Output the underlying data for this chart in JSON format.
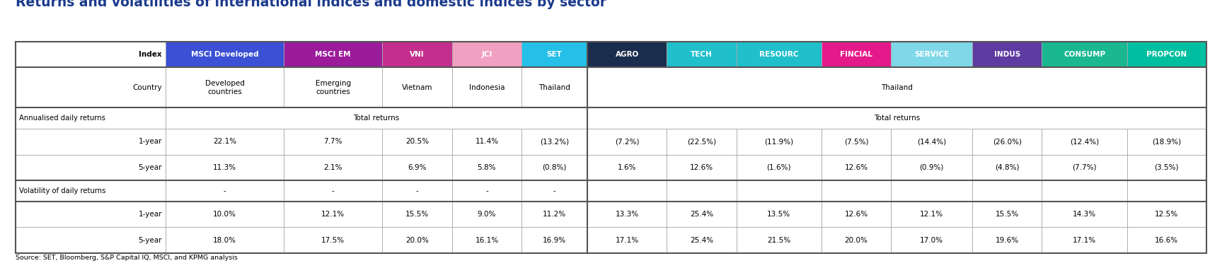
{
  "title": "Returns and volatilities of international indices and domestic indices by sector",
  "title_color": "#1B3A8C",
  "header_labels": [
    "Index",
    "MSCI Developed",
    "MSCI EM",
    "VNI",
    "JCI",
    "SET",
    "AGRO",
    "TECH",
    "RESOURC",
    "FINCIAL",
    "SERVICE",
    "INDUS",
    "CONSUMP",
    "PROPCON"
  ],
  "header_bg": [
    "#FFFFFF",
    "#3B50D5",
    "#9B1B9B",
    "#C42F8E",
    "#F0A0C0",
    "#25C0E8",
    "#1B2D4E",
    "#20BFCC",
    "#20BFCC",
    "#E51A8A",
    "#7FD8E8",
    "#5E3BA0",
    "#19B890",
    "#00BFA0"
  ],
  "header_fg": [
    "#000000",
    "#FFFFFF",
    "#FFFFFF",
    "#FFFFFF",
    "#FFFFFF",
    "#FFFFFF",
    "#FFFFFF",
    "#FFFFFF",
    "#FFFFFF",
    "#FFFFFF",
    "#FFFFFF",
    "#FFFFFF",
    "#FFFFFF",
    "#FFFFFF"
  ],
  "col_widths_raw": [
    1.55,
    1.22,
    1.02,
    0.72,
    0.72,
    0.68,
    0.82,
    0.72,
    0.88,
    0.72,
    0.84,
    0.72,
    0.88,
    0.82
  ],
  "country_vals": [
    "Developed\ncountries",
    "Emerging\ncountries",
    "Vietnam",
    "Indonesia",
    "Thailand",
    "",
    "",
    "",
    "",
    "",
    "",
    "",
    ""
  ],
  "row_1yr_ann": [
    "22.1%",
    "7.7%",
    "20.5%",
    "11.4%",
    "(13.2%)",
    "(7.2%)",
    "(22.5%)",
    "(11.9%)",
    "(7.5%)",
    "(14.4%)",
    "(26.0%)",
    "(12.4%)",
    "(18.9%)"
  ],
  "row_5yr_ann": [
    "11.3%",
    "2.1%",
    "6.9%",
    "5.8%",
    "(0.8%)",
    "1.6%",
    "12.6%",
    "(1.6%)",
    "12.6%",
    "(0.9%)",
    "(4.8%)",
    "(7.7%)",
    "(3.5%)"
  ],
  "row_1yr_vol": [
    "10.0%",
    "12.1%",
    "15.5%",
    "9.0%",
    "11.2%",
    "13.3%",
    "25.4%",
    "13.5%",
    "12.6%",
    "12.1%",
    "15.5%",
    "14.3%",
    "12.5%"
  ],
  "row_5yr_vol": [
    "18.0%",
    "17.5%",
    "20.0%",
    "16.1%",
    "16.9%",
    "17.1%",
    "25.4%",
    "21.5%",
    "20.0%",
    "17.0%",
    "19.6%",
    "17.1%",
    "16.6%"
  ],
  "source": "Source: SET, Bloomberg, S&P Capital IQ, MSCI, and KPMG analysis",
  "bg_color": "#FFFFFF",
  "border_color": "#555555",
  "cell_border_color": "#AAAAAA",
  "thick_lw": 1.5,
  "thin_lw": 0.5
}
